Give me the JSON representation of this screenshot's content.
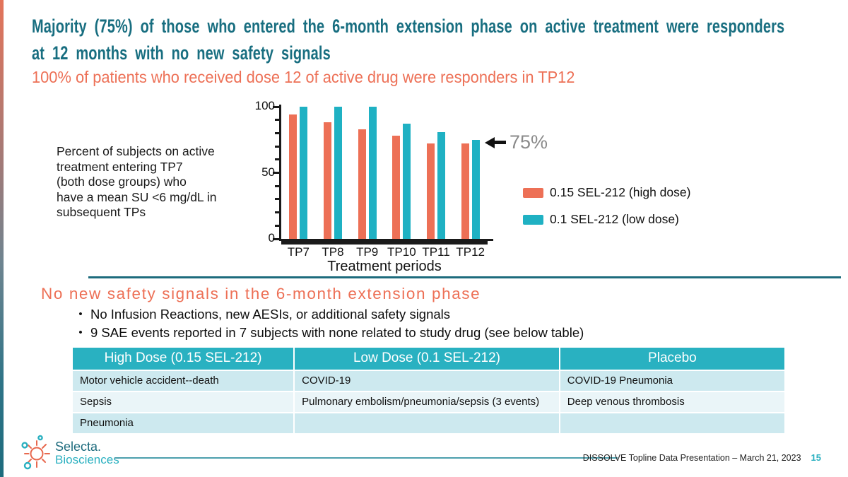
{
  "slide": {
    "title": "Majority (75%) of those who entered the 6-month extension phase on active treatment were responders\nat 12 months with no new safety signals",
    "subtitle": "100% of patients who received dose 12 of active drug were responders in TP12"
  },
  "chart": {
    "note": "Percent of subjects on active\ntreatment entering TP7\n(both dose groups) who\nhave a mean SU <6 mg/dL in\nsubsequent TPs",
    "annotation_label": "75%"
  },
  "chart_data": {
    "type": "bar",
    "categories": [
      "TP7",
      "TP8",
      "TP9",
      "TP10",
      "TP11",
      "TP12"
    ],
    "series": [
      {
        "name": "0.15 SEL-212 (high dose)",
        "color": "#ED7056",
        "values": [
          94,
          88,
          83,
          78,
          72,
          72
        ]
      },
      {
        "name": "0.1 SEL-212 (low dose)",
        "color": "#1FB1C3",
        "values": [
          100,
          100,
          100,
          87,
          81,
          75
        ]
      }
    ],
    "xlabel": "Treatment periods",
    "ylabel": "",
    "ylim": [
      0,
      100
    ],
    "yticks": [
      0,
      50,
      100
    ],
    "minor_tick_step": 10,
    "grid": false,
    "legend_position": "right",
    "annotation": {
      "text": "75%",
      "value": 75,
      "arrow": "left"
    }
  },
  "safety": {
    "heading": "No new safety signals in the 6-month extension phase",
    "bullets": [
      "No Infusion Reactions, new AESIs, or additional safety signals",
      "9 SAE events reported in 7 subjects with none related to study drug (see below table)"
    ]
  },
  "sae_table": {
    "headers": [
      "High Dose (0.15 SEL-212)",
      "Low Dose (0.1 SEL-212)",
      "Placebo"
    ],
    "rows": [
      [
        "Motor vehicle accident--death",
        "COVID-19",
        "COVID-19 Pneumonia"
      ],
      [
        "Sepsis",
        "Pulmonary embolism/pneumonia/sepsis (3 events)",
        "Deep venous thrombosis"
      ],
      [
        "Pneumonia",
        "",
        ""
      ]
    ]
  },
  "footer": {
    "logo_line1": "Selecta.",
    "logo_line2": "Biosciences",
    "citation": "DISSOLVE Topline Data Presentation – March 21, 2023",
    "page_number": "15"
  },
  "colors": {
    "title_teal": "#186E80",
    "accent_orange": "#ED7056",
    "bar_orange": "#ED7056",
    "bar_teal": "#1FB1C3",
    "table_header_teal": "#29B1C1",
    "divider_teal": "#1D6B7D",
    "row_shade_dark": "#CDE9EF",
    "row_shade_light": "#EAF5F8",
    "annotation_gray": "#8A8A8A"
  }
}
